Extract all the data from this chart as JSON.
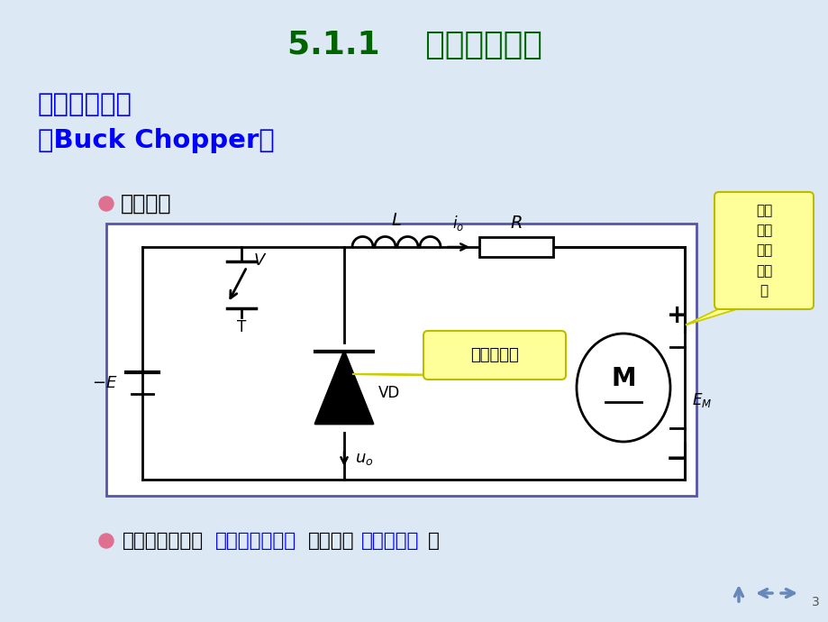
{
  "title": "5.1.1    降压斩波电路",
  "title_color": "#006400",
  "bg_color": "#dce9f5",
  "subtitle_line1": "降压斩波电路",
  "subtitle_line2": "（Buck Chopper）",
  "subtitle_color": "#0000ff",
  "section_label": "电路结构",
  "callout_text": "续流二极管",
  "note_text": "负载\n出现\n的反\n电动\n势",
  "bottom_black1": "典型用途之一是",
  "bottom_blue1": "拖动直流电动机",
  "bottom_black2": "，也可带",
  "bottom_blue2": "蓄电池负载",
  "bottom_black3": "。",
  "page_num": "3"
}
